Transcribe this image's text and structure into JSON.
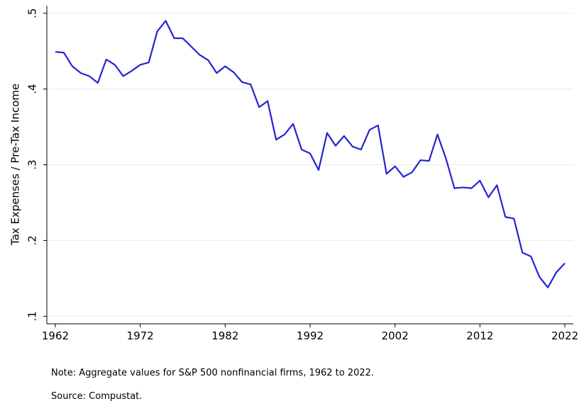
{
  "chart_data": {
    "type": "line",
    "y_label": "Tax Expenses / Pre-Tax Income",
    "notes": [
      "Note: Aggregate values for S&P 500 nonfinancial firms, 1962 to 2022.",
      "Source: Compustat."
    ],
    "x": [
      1962,
      1963,
      1964,
      1965,
      1966,
      1967,
      1968,
      1969,
      1970,
      1971,
      1972,
      1973,
      1974,
      1975,
      1976,
      1977,
      1978,
      1979,
      1980,
      1981,
      1982,
      1983,
      1984,
      1985,
      1986,
      1987,
      1988,
      1989,
      1990,
      1991,
      1992,
      1993,
      1994,
      1995,
      1996,
      1997,
      1998,
      1999,
      2000,
      2001,
      2002,
      2003,
      2004,
      2005,
      2006,
      2007,
      2008,
      2009,
      2010,
      2011,
      2012,
      2013,
      2014,
      2015,
      2016,
      2017,
      2018,
      2019,
      2020,
      2021,
      2022
    ],
    "series": [
      {
        "name": "Tax Expenses / Pre-Tax Income",
        "color": "#2424d0",
        "values": [
          0.449,
          0.448,
          0.43,
          0.421,
          0.417,
          0.408,
          0.439,
          0.432,
          0.417,
          0.424,
          0.432,
          0.435,
          0.476,
          0.49,
          0.467,
          0.467,
          0.456,
          0.445,
          0.438,
          0.421,
          0.43,
          0.422,
          0.409,
          0.406,
          0.376,
          0.384,
          0.333,
          0.34,
          0.354,
          0.32,
          0.315,
          0.293,
          0.342,
          0.325,
          0.338,
          0.324,
          0.32,
          0.346,
          0.352,
          0.288,
          0.298,
          0.284,
          0.29,
          0.306,
          0.305,
          0.34,
          0.308,
          0.269,
          0.27,
          0.269,
          0.279,
          0.257,
          0.273,
          0.231,
          0.229,
          0.184,
          0.179,
          0.152,
          0.138,
          0.158,
          0.17
        ]
      }
    ],
    "xlim": [
      1961,
      2023
    ],
    "xticks": [
      1962,
      1972,
      1982,
      1992,
      2002,
      2012,
      2022
    ],
    "ylim": [
      0.09,
      0.51
    ],
    "yticks": [
      {
        "value": 0.1,
        "label": ".1"
      },
      {
        "value": 0.2,
        "label": ".2"
      },
      {
        "value": 0.3,
        "label": ".3"
      },
      {
        "value": 0.4,
        "label": ".4"
      },
      {
        "value": 0.5,
        "label": ".5"
      }
    ],
    "grid": true
  }
}
